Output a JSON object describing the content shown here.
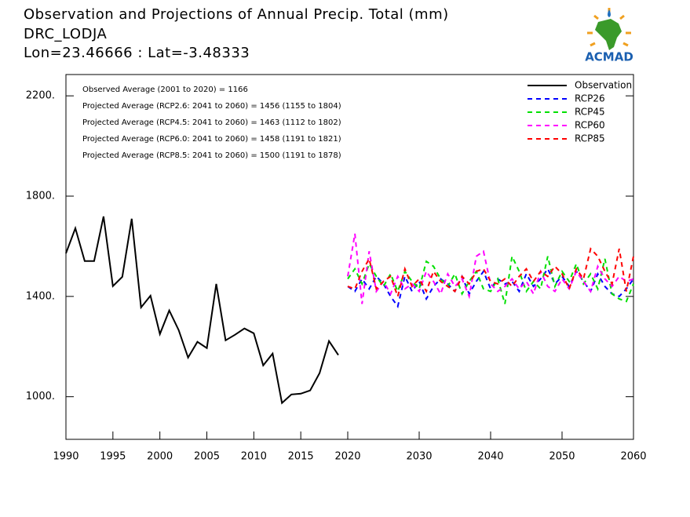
{
  "logo_text": "ACMAD",
  "chart_data": [
    {
      "type": "line",
      "title": "Observation and Projections of Annual Precip. Total (mm)",
      "subtitle": "DRC_LODJA",
      "location": "Lon=23.46666 : Lat=-3.48333",
      "annotations": [
        "Observed Average (2001 to 2020) = 1166",
        "Projected Average (RCP2.6: 2041 to 2060) = 1456 (1155 to 1804)",
        "Projected Average (RCP4.5: 2041 to 2060) = 1463 (1112 to 1802)",
        "Projected Average (RCP6.0: 2041 to 2060) = 1458 (1191 to 1821)",
        "Projected Average (RCP8.5: 2041 to 2060) = 1500 (1191 to 1878)"
      ],
      "x": [
        1990,
        1991,
        1992,
        1993,
        1994,
        1995,
        1996,
        1997,
        1998,
        1999,
        2000,
        2001,
        2002,
        2003,
        2004,
        2005,
        2006,
        2007,
        2008,
        2009,
        2010,
        2011,
        2012,
        2013,
        2014,
        2015,
        2016,
        2017,
        2018,
        2019
      ],
      "series": [
        {
          "name": "Observation",
          "color": "#000000",
          "dashed": false,
          "values": [
            1572,
            1672,
            1541,
            1541,
            1719,
            1441,
            1478,
            1710,
            1356,
            1403,
            1250,
            1344,
            1266,
            1156,
            1219,
            1194,
            1450,
            1225,
            1247,
            1272,
            1253,
            1125,
            1172,
            975,
            1009,
            1012,
            1025,
            1094,
            1222,
            1166
          ]
        }
      ],
      "xlim": [
        1990,
        2020
      ],
      "xticks": [
        1990,
        1995,
        2000,
        2005,
        2010,
        2015,
        2020
      ],
      "ylim": [
        830,
        2285
      ],
      "yticks": [
        {
          "value": 1000,
          "label": "1000."
        },
        {
          "value": 1400,
          "label": "1400."
        },
        {
          "value": 1800,
          "label": "1800."
        },
        {
          "value": 2200,
          "label": "2200."
        }
      ],
      "legend": "upper right"
    },
    {
      "type": "line",
      "x": [
        2020,
        2021,
        2022,
        2023,
        2024,
        2025,
        2026,
        2027,
        2028,
        2029,
        2030,
        2031,
        2032,
        2033,
        2034,
        2035,
        2036,
        2037,
        2038,
        2039,
        2040,
        2041,
        2042,
        2043,
        2044,
        2045,
        2046,
        2047,
        2048,
        2049,
        2050,
        2051,
        2052,
        2053,
        2054,
        2055,
        2056,
        2057,
        2058,
        2059,
        2060
      ],
      "series": [
        {
          "name": "RCP26",
          "color": "#0000ff",
          "dashed": true,
          "values": [
            1440,
            1420,
            1470,
            1430,
            1480,
            1450,
            1400,
            1360,
            1480,
            1420,
            1460,
            1390,
            1440,
            1470,
            1450,
            1420,
            1480,
            1410,
            1460,
            1500,
            1430,
            1470,
            1450,
            1460,
            1420,
            1490,
            1440,
            1470,
            1510,
            1450,
            1480,
            1440,
            1500,
            1460,
            1420,
            1490,
            1440,
            1410,
            1400,
            1430,
            1470
          ]
        },
        {
          "name": "RCP45",
          "color": "#00e000",
          "dashed": true,
          "values": [
            1470,
            1510,
            1450,
            1530,
            1480,
            1440,
            1490,
            1420,
            1500,
            1460,
            1430,
            1540,
            1520,
            1470,
            1440,
            1490,
            1410,
            1460,
            1500,
            1430,
            1420,
            1470,
            1370,
            1560,
            1500,
            1420,
            1460,
            1430,
            1560,
            1440,
            1500,
            1460,
            1530,
            1450,
            1490,
            1430,
            1550,
            1410,
            1390,
            1380,
            1450
          ]
        },
        {
          "name": "RCP60",
          "color": "#ff00ff",
          "dashed": true,
          "values": [
            1480,
            1650,
            1370,
            1580,
            1420,
            1460,
            1410,
            1480,
            1430,
            1450,
            1420,
            1500,
            1460,
            1410,
            1490,
            1440,
            1470,
            1400,
            1560,
            1580,
            1450,
            1420,
            1440,
            1470,
            1430,
            1460,
            1410,
            1500,
            1440,
            1420,
            1470,
            1430,
            1500,
            1460,
            1420,
            1520,
            1470,
            1440,
            1480,
            1460,
            1470
          ]
        },
        {
          "name": "RCP85",
          "color": "#ff0000",
          "dashed": true,
          "values": [
            1440,
            1430,
            1500,
            1550,
            1430,
            1460,
            1480,
            1400,
            1510,
            1440,
            1470,
            1420,
            1500,
            1460,
            1440,
            1420,
            1480,
            1450,
            1500,
            1510,
            1460,
            1450,
            1470,
            1440,
            1480,
            1510,
            1460,
            1500,
            1480,
            1520,
            1490,
            1430,
            1510,
            1470,
            1590,
            1560,
            1500,
            1450,
            1590,
            1420,
            1560
          ]
        }
      ],
      "xlim": [
        2020,
        2060
      ],
      "xticks": [
        2030,
        2040,
        2050,
        2060
      ],
      "ylim": [
        830,
        2285
      ]
    }
  ]
}
